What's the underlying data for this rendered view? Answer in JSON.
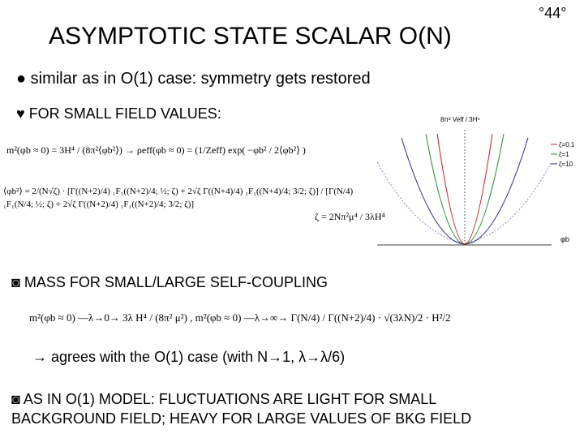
{
  "slide": {
    "page_number": "°44°",
    "title": "ASYMPTOTIC STATE SCALAR O(N)",
    "bullet_1": "● similar as in O(1) case: symmetry gets restored",
    "bullet_2": "♥ FOR SMALL FIELD VALUES:",
    "formula_1": "m²(φb ≈ 0) = 3H⁴ / (8π²⟨φb²⟩)   →   ρeff(φb ≈ 0) = (1/Zeff) exp( −φb² / 2⟨φb²⟩ )",
    "formula_2": "⟨φb²⟩ = 2/(N√ζ) · [Γ((N+2)/4) ₁F₁((N+2)/4; ½; ζ) + 2√ζ Γ((N+4)/4) ₁F₁((N+4)/4; 3/2; ζ)] / [Γ(N/4) ₁F₁(N/4; ½; ζ) + 2√ζ Γ((N+2)/4) ₁F₁((N+2)/4; 3/2; ζ)]",
    "formula_2b": "ζ = 2Nπ²μ⁴ / 3λH⁴",
    "bullet_3": "◙ MASS FOR SMALL/LARGE SELF-COUPLING",
    "formula_3": "m²(φb ≈ 0) —λ→0→ 3λ H⁴ / (8π² μ²) ,   m²(φb ≈ 0) —λ→∞→ Γ(N/4) / Γ((N+2)/4) · √(3λN)/2 · H²/2",
    "bullet_4": "→ agrees with the O(1) case (with N→1, λ→λ/6)",
    "bullet_5_line_1": "◙ AS IN O(1) MODEL: FLUCTUATIONS ARE LIGHT FOR SMALL",
    "bullet_5_line_2": "BACKGROUND FIELD; HEAVY FOR LARGE VALUES OF BKG FIELD",
    "plot": {
      "y_label": "8π² Veff / 3H⁴",
      "x_label": "φb",
      "legend": [
        "ζ=0.1",
        "ζ=1",
        "ζ=10"
      ]
    }
  }
}
